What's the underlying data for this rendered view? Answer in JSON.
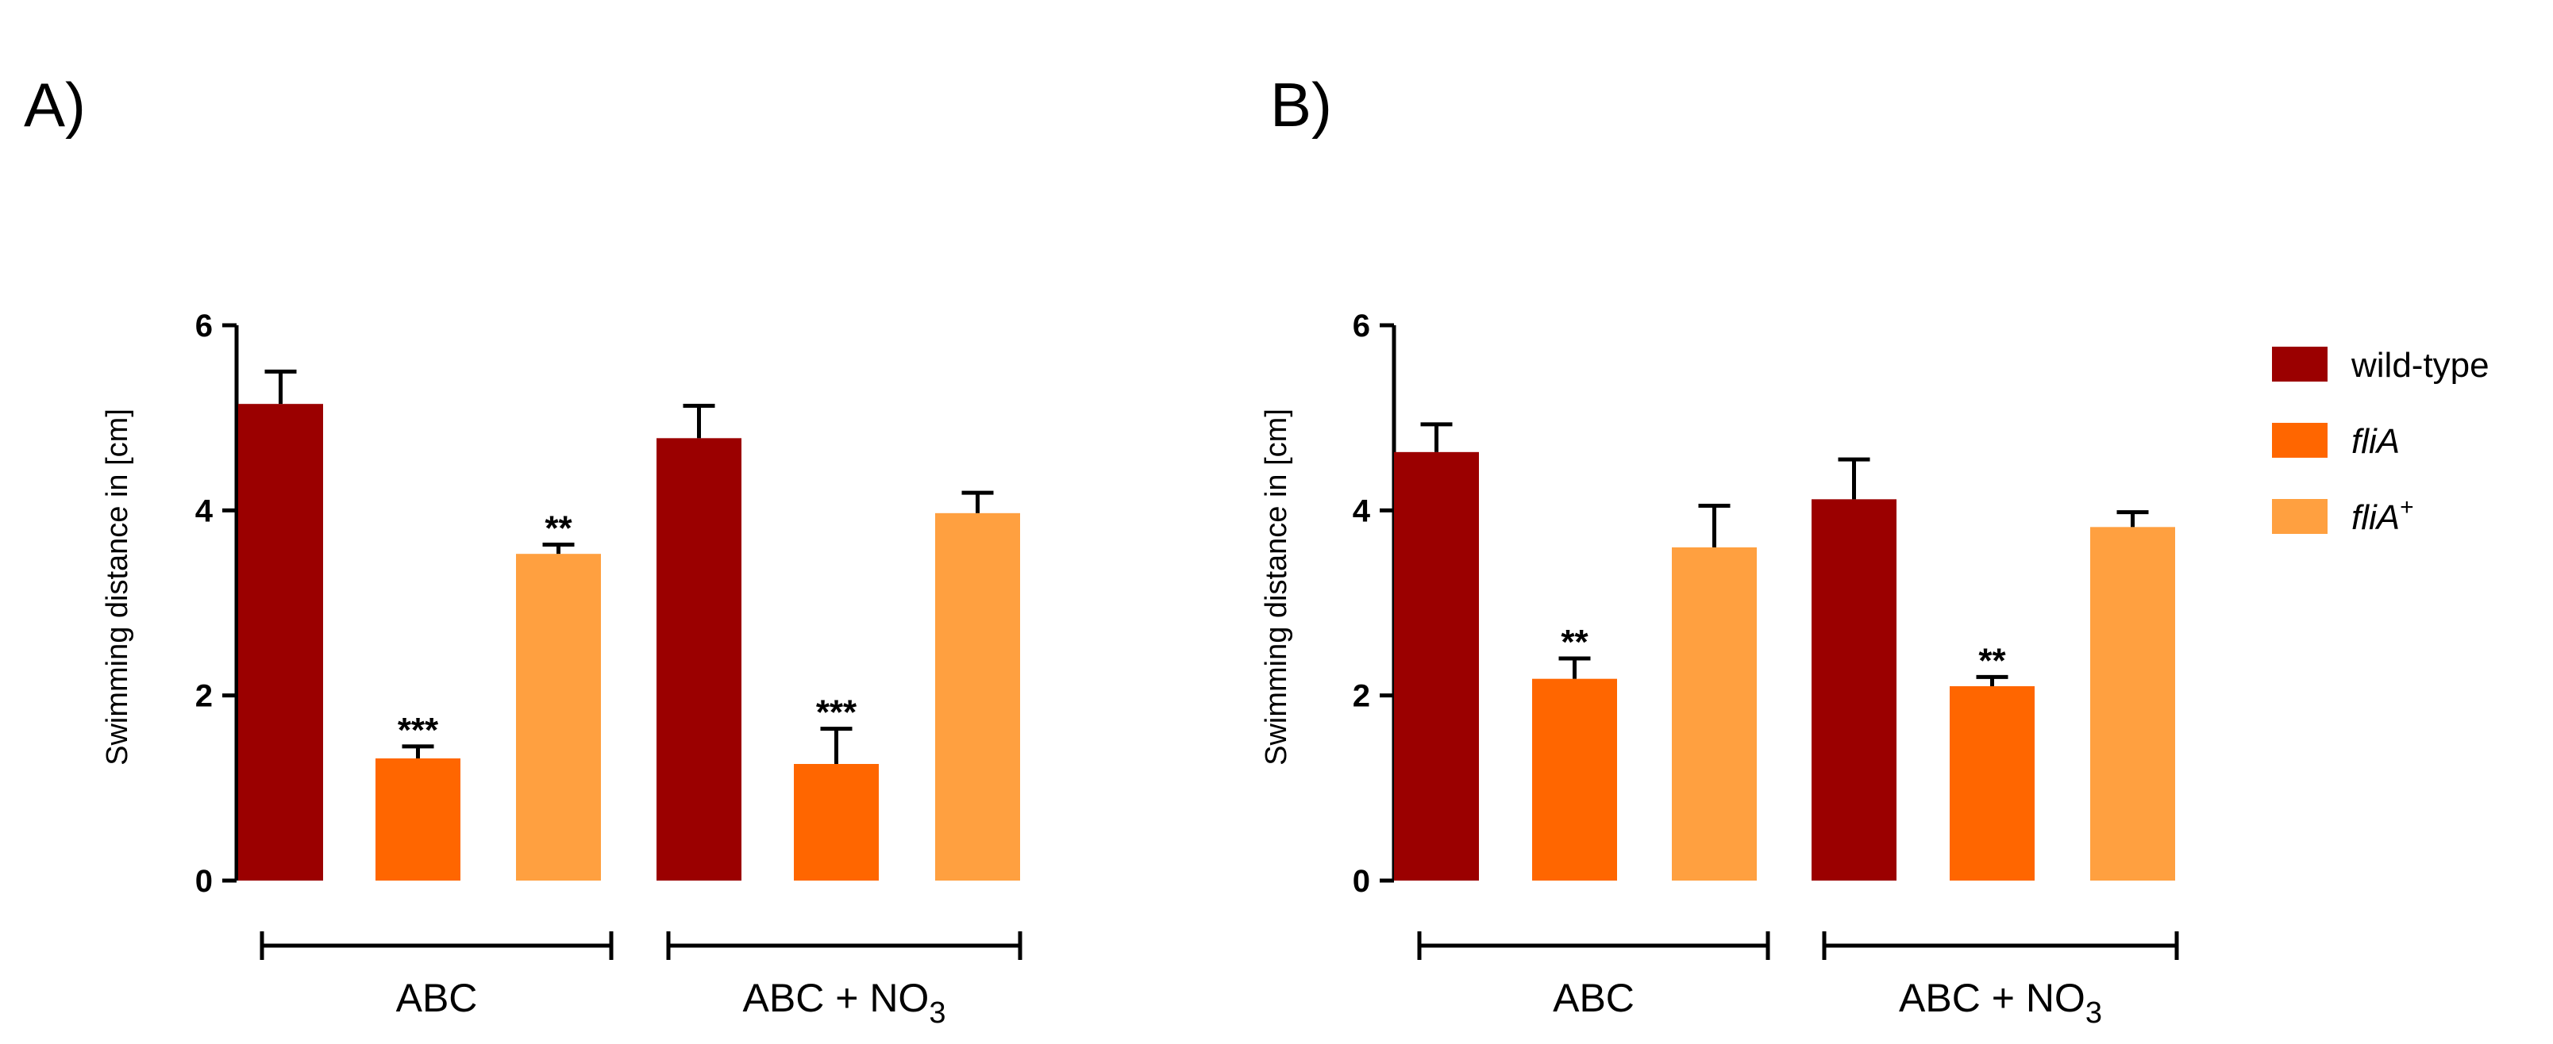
{
  "colors": {
    "wild_type": "#9b0000",
    "fliA": "#ff6600",
    "fliA_plus": "#ffa040",
    "axis": "#000000"
  },
  "legend": [
    {
      "label": "wild-type",
      "italic": false,
      "sup": ""
    },
    {
      "label": "fliA",
      "italic": true,
      "sup": ""
    },
    {
      "label": "fliA",
      "italic": true,
      "sup": "+"
    }
  ],
  "chart_data": [
    {
      "panel_label": "A)",
      "type": "bar",
      "ylabel": "Swimming distance in [cm]",
      "ylim": [
        0,
        6
      ],
      "yticks": [
        "0",
        "2",
        "4",
        "6"
      ],
      "groups": [
        {
          "label": "ABC",
          "sub": ""
        },
        {
          "label": "ABC  + NO",
          "sub": "3"
        }
      ],
      "series": [
        {
          "name": "wild-type",
          "values": [
            5.15,
            4.78
          ],
          "errors": [
            0.35,
            0.35
          ],
          "sig": [
            "",
            ""
          ]
        },
        {
          "name": "fliA",
          "values": [
            1.32,
            1.26
          ],
          "errors": [
            0.13,
            0.38
          ],
          "sig": [
            "***",
            "***"
          ]
        },
        {
          "name": "fliA+",
          "values": [
            3.53,
            3.97
          ],
          "errors": [
            0.1,
            0.22
          ],
          "sig": [
            "**",
            ""
          ]
        }
      ]
    },
    {
      "panel_label": "B)",
      "type": "bar",
      "ylabel": "Swimming distance in [cm]",
      "ylim": [
        0,
        6
      ],
      "yticks": [
        "0",
        "2",
        "4",
        "6"
      ],
      "groups": [
        {
          "label": "ABC",
          "sub": ""
        },
        {
          "label": "ABC  + NO",
          "sub": "3"
        }
      ],
      "series": [
        {
          "name": "wild-type",
          "values": [
            4.63,
            4.12
          ],
          "errors": [
            0.3,
            0.43
          ],
          "sig": [
            "",
            ""
          ]
        },
        {
          "name": "fliA",
          "values": [
            2.18,
            2.1
          ],
          "errors": [
            0.22,
            0.1
          ],
          "sig": [
            "**",
            "**"
          ]
        },
        {
          "name": "fliA+",
          "values": [
            3.6,
            3.82
          ],
          "errors": [
            0.45,
            0.16
          ],
          "sig": [
            "",
            ""
          ]
        }
      ]
    }
  ]
}
